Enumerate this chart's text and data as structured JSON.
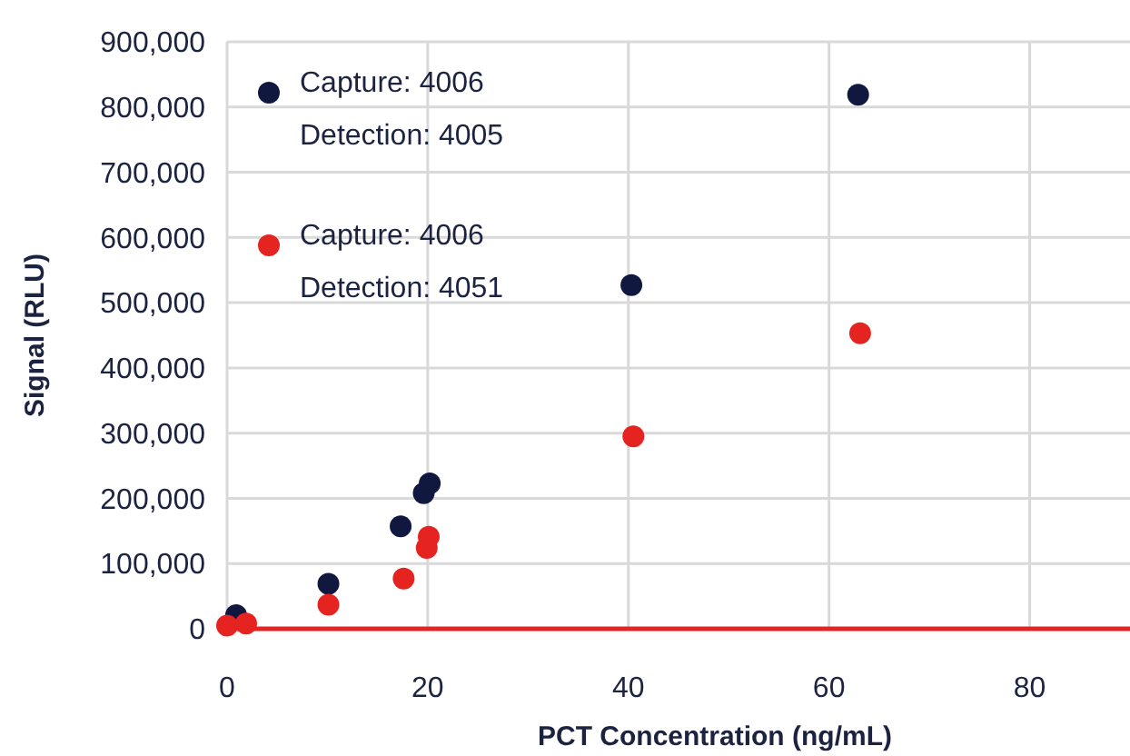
{
  "chart_data": {
    "type": "scatter",
    "xlabel": "PCT Concentration (ng/mL)",
    "ylabel": "Signal (RLU)",
    "xlim": [
      0,
      90
    ],
    "xticks": [
      0,
      20,
      40,
      60,
      80
    ],
    "ylim": [
      0,
      900000
    ],
    "yticks": [
      {
        "value": 0,
        "label": "0"
      },
      {
        "value": 100000,
        "label": "100,000"
      },
      {
        "value": 200000,
        "label": "200,000"
      },
      {
        "value": 300000,
        "label": "300,000"
      },
      {
        "value": 400000,
        "label": "400,000"
      },
      {
        "value": 500000,
        "label": "500,000"
      },
      {
        "value": 600000,
        "label": "600,000"
      },
      {
        "value": 700000,
        "label": "700,000"
      },
      {
        "value": 800000,
        "label": "800,000"
      },
      {
        "value": 900000,
        "label": "900,000"
      }
    ],
    "grid": true,
    "legend": "top left",
    "marker": "circle",
    "series": [
      {
        "name": "Capture: 4006\nDetection: 4005",
        "color": "#101840",
        "x": [
          0.9,
          10.1,
          17.3,
          19.6,
          20.2,
          40.3,
          62.9
        ],
        "values": [
          21000,
          69000,
          157000,
          208000,
          223000,
          527000,
          819000
        ]
      },
      {
        "name": "Capture: 4006\nDetection: 4051",
        "color": "#e52421",
        "x": [
          0,
          1.9,
          10.1,
          17.6,
          19.9,
          20.1,
          40.5,
          63.1
        ],
        "values": [
          5000,
          8000,
          37000,
          77000,
          124000,
          141000,
          295000,
          453000
        ]
      }
    ]
  }
}
